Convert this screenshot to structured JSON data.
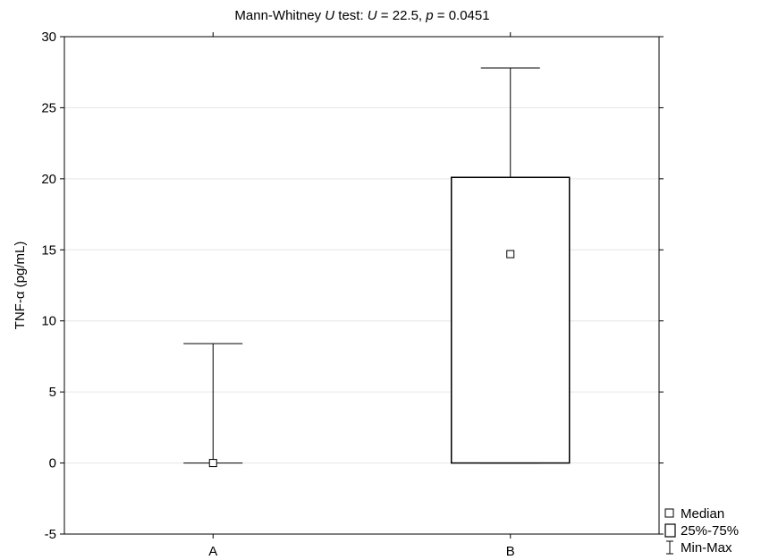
{
  "chart_data": {
    "type": "box",
    "title": {
      "prefix": "Mann-Whitney ",
      "u_italic": "U",
      "mid1": " test: ",
      "u2_italic": "U",
      "mid2": " = 22.5, ",
      "p_italic": "p",
      "suffix": " = 0.0451"
    },
    "ylabel": "TNF-α (pg/mL)",
    "xlabel": "",
    "ylim": [
      -5,
      30
    ],
    "yticks": [
      -5,
      0,
      5,
      10,
      15,
      20,
      25,
      30
    ],
    "grid": true,
    "categories": [
      "A",
      "B"
    ],
    "groups": [
      {
        "category": "A",
        "median": 0,
        "q1": 0,
        "q3": 0,
        "min": 0,
        "max": 8.4
      },
      {
        "category": "B",
        "median": 14.7,
        "q1": 0,
        "q3": 20.1,
        "min": 0,
        "max": 27.8
      }
    ],
    "legend": {
      "placement": "bottom-right-outside",
      "entries": [
        {
          "symbol": "median",
          "label": "Median"
        },
        {
          "symbol": "box",
          "label": "25%-75%"
        },
        {
          "symbol": "whisker",
          "label": "Min-Max"
        }
      ]
    }
  }
}
